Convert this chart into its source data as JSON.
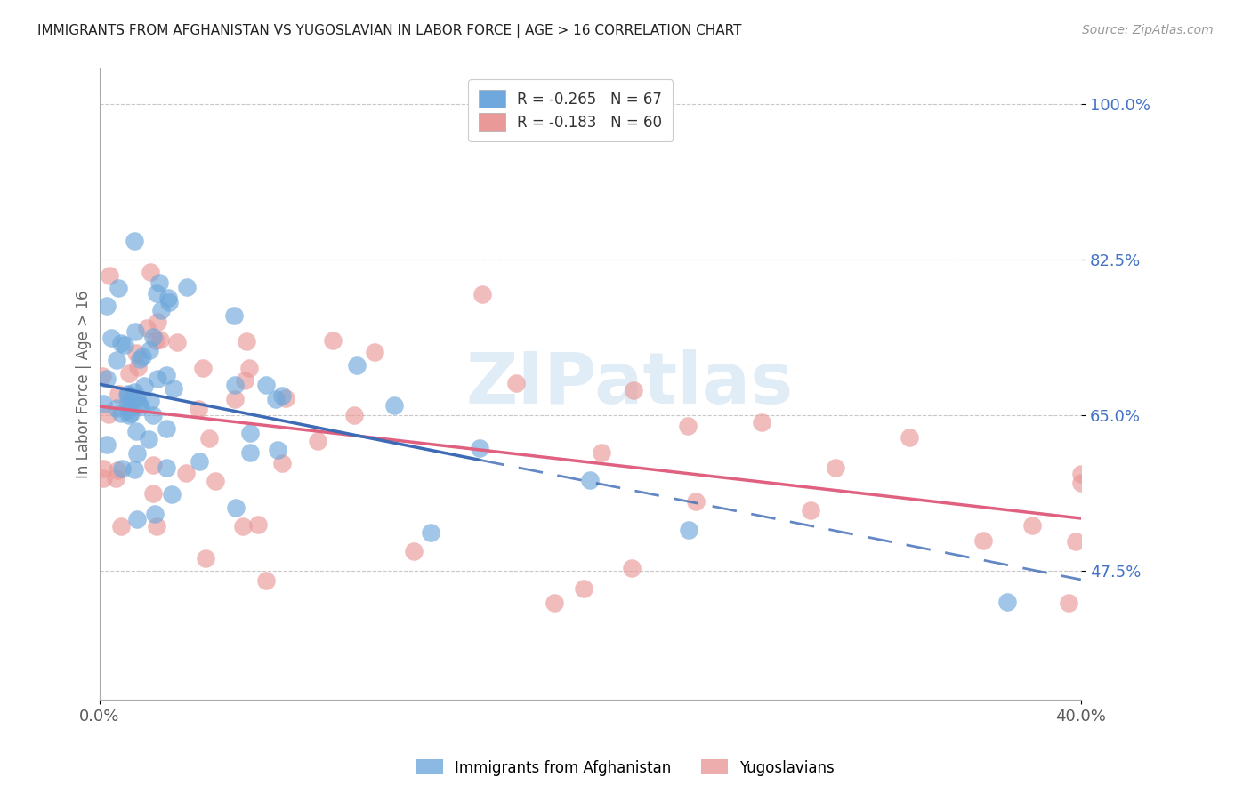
{
  "title": "IMMIGRANTS FROM AFGHANISTAN VS YUGOSLAVIAN IN LABOR FORCE | AGE > 16 CORRELATION CHART",
  "source": "Source: ZipAtlas.com",
  "ylabel": "In Labor Force | Age > 16",
  "x_min": 0.0,
  "x_max": 0.4,
  "y_min": 0.33,
  "y_max": 1.04,
  "y_ticks": [
    0.475,
    0.65,
    0.825,
    1.0
  ],
  "y_tick_labels": [
    "47.5%",
    "65.0%",
    "82.5%",
    "100.0%"
  ],
  "afghanistan_R": -0.265,
  "afghanistan_N": 67,
  "yugoslavian_R": -0.183,
  "yugoslavian_N": 60,
  "afghanistan_color": "#6fa8dc",
  "yugoslavian_color": "#ea9999",
  "afghanistan_line_color": "#3d6bb5",
  "yugoslavian_line_color": "#e06080",
  "background_color": "#ffffff",
  "watermark_text": "ZIPatlas",
  "afg_line_intercept": 0.685,
  "afg_line_slope": -0.55,
  "afg_line_solid_end": 0.155,
  "yug_line_intercept": 0.66,
  "yug_line_slope": -0.315
}
